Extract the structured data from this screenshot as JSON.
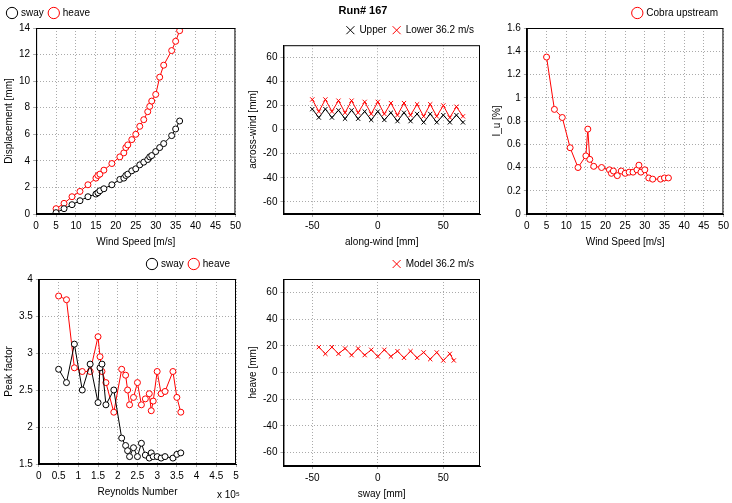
{
  "chart_data": [
    {
      "type": "line",
      "x_label": "Wind Speed [m/s]",
      "y_label": "Displacement [mm]",
      "x": [
        5,
        7,
        9,
        11,
        13,
        15,
        15.5,
        16,
        17,
        19,
        21,
        22,
        22.5,
        23,
        24,
        25,
        26,
        27,
        28,
        28.5,
        29,
        30,
        31,
        32,
        34,
        35,
        36
      ],
      "series": [
        {
          "name": "sway",
          "color": "#000000",
          "marker": "circle",
          "line_style": "solid",
          "values": [
            0.1,
            0.4,
            0.7,
            1.0,
            1.3,
            1.5,
            1.6,
            1.75,
            1.9,
            2.2,
            2.6,
            2.7,
            2.9,
            3.0,
            3.25,
            3.4,
            3.7,
            3.9,
            4.1,
            4.3,
            4.4,
            4.7,
            5.0,
            5.3,
            5.9,
            6.4,
            7.0
          ]
        },
        {
          "name": "heave",
          "color": "#ff0000",
          "marker": "circle",
          "line_style": "solid",
          "values": [
            0.4,
            0.8,
            1.3,
            1.7,
            2.2,
            2.7,
            2.9,
            3.0,
            3.3,
            3.8,
            4.3,
            4.6,
            5.0,
            5.2,
            5.6,
            6.0,
            6.6,
            7.1,
            7.7,
            8.1,
            8.5,
            9.0,
            10.3,
            11.2,
            12.3,
            13.0,
            13.8
          ]
        }
      ],
      "xlim": [
        0,
        50
      ],
      "xticks": [
        0,
        5,
        10,
        15,
        20,
        25,
        30,
        35,
        40,
        45,
        50
      ],
      "ylim": [
        0,
        14
      ],
      "yticks": [
        0,
        2,
        4,
        6,
        8,
        10,
        12,
        14
      ],
      "grid": true,
      "legend": "upper left"
    },
    {
      "type": "scatter",
      "title": "Run# 167",
      "x_label": "along-wind [mm]",
      "y_label": "across-wind [mm]",
      "x": [
        -50,
        -45,
        -40,
        -35,
        -30,
        -25,
        -20,
        -15,
        -10,
        -5,
        0,
        5,
        10,
        15,
        20,
        25,
        30,
        35,
        40,
        45,
        50,
        55,
        60,
        65
      ],
      "series": [
        {
          "name": "Upper",
          "color": "#000000",
          "marker": "x",
          "line_style": "solid",
          "values": [
            17,
            10,
            17,
            10,
            16,
            9,
            16,
            9,
            15,
            8,
            15,
            8,
            14,
            7,
            14,
            7,
            13,
            6,
            13,
            6,
            12,
            6,
            12,
            6
          ]
        },
        {
          "name": "Lower 36.2 m/s",
          "color": "#ff0000",
          "marker": "x",
          "line_style": "solid",
          "values": [
            25,
            15,
            25,
            15,
            24,
            14,
            24,
            14,
            23,
            13,
            23,
            13,
            22,
            12,
            22,
            12,
            21,
            11,
            21,
            11,
            20,
            10,
            19,
            11
          ]
        }
      ],
      "xlim": [
        -72,
        78
      ],
      "xticks": [
        -50,
        0,
        50
      ],
      "ylim": [
        -70,
        70
      ],
      "yticks": [
        -60,
        -40,
        -20,
        0,
        20,
        40,
        60
      ],
      "grid": true,
      "legend": "upper right"
    },
    {
      "type": "line",
      "x_label": "Wind Speed [m/s]",
      "y_label": "I_u [%]",
      "x": [
        5,
        7,
        9,
        11,
        13,
        15,
        15.5,
        16,
        17,
        19,
        21,
        21.5,
        22,
        23,
        24,
        25,
        26,
        27,
        28,
        28.5,
        29,
        30,
        31,
        32,
        34,
        35,
        36
      ],
      "series": [
        {
          "name": "Cobra upstream",
          "color": "#ff0000",
          "marker": "circle",
          "line_style": "solid",
          "values": [
            1.35,
            0.9,
            0.83,
            0.57,
            0.4,
            0.5,
            0.73,
            0.47,
            0.41,
            0.4,
            0.38,
            0.35,
            0.37,
            0.33,
            0.37,
            0.35,
            0.36,
            0.36,
            0.38,
            0.42,
            0.36,
            0.38,
            0.31,
            0.3,
            0.3,
            0.31,
            0.31
          ]
        }
      ],
      "xlim": [
        0,
        50
      ],
      "xticks": [
        0,
        5,
        10,
        15,
        20,
        25,
        30,
        35,
        40,
        45,
        50
      ],
      "ylim": [
        0,
        1.6
      ],
      "yticks": [
        0,
        0.2,
        0.4,
        0.6,
        0.8,
        1,
        1.2,
        1.4,
        1.6
      ],
      "grid": true,
      "legend": "upper right"
    },
    {
      "type": "line",
      "x_label": "Reynolds Number",
      "y_label": "Peak factor",
      "annotations": [
        "x 10⁵"
      ],
      "x": [
        0.5,
        0.7,
        0.9,
        1.1,
        1.3,
        1.5,
        1.55,
        1.6,
        1.7,
        1.9,
        2.1,
        2.2,
        2.25,
        2.3,
        2.4,
        2.5,
        2.6,
        2.7,
        2.8,
        2.85,
        2.9,
        3.0,
        3.1,
        3.2,
        3.4,
        3.5,
        3.6
      ],
      "series": [
        {
          "name": "sway",
          "color": "#000000",
          "marker": "circle",
          "line_style": "solid",
          "values": [
            2.78,
            2.6,
            3.12,
            2.5,
            2.85,
            2.33,
            2.8,
            2.85,
            2.3,
            2.5,
            1.85,
            1.75,
            1.68,
            1.6,
            1.72,
            1.6,
            1.78,
            1.62,
            1.58,
            1.65,
            1.6,
            1.6,
            1.58,
            1.6,
            1.58,
            1.63,
            1.65
          ]
        },
        {
          "name": "heave",
          "color": "#ff0000",
          "marker": "circle",
          "line_style": "solid",
          "values": [
            3.77,
            3.72,
            2.8,
            2.75,
            2.75,
            3.22,
            2.95,
            2.75,
            2.6,
            2.2,
            2.78,
            2.7,
            2.5,
            2.3,
            2.4,
            2.6,
            2.3,
            2.38,
            2.45,
            2.22,
            2.35,
            2.75,
            2.45,
            2.48,
            2.75,
            2.4,
            2.2
          ]
        }
      ],
      "xlim": [
        0,
        5
      ],
      "xticks": [
        0,
        0.5,
        1,
        1.5,
        2,
        2.5,
        3,
        3.5,
        4,
        4.5,
        5
      ],
      "ylim": [
        1.5,
        4
      ],
      "yticks": [
        1.5,
        2,
        2.5,
        3,
        3.5,
        4
      ],
      "grid": true,
      "legend": "upper right"
    },
    {
      "type": "scatter",
      "x_label": "sway [mm]",
      "y_label": "heave [mm]",
      "x": [
        -45,
        -40,
        -35,
        -30,
        -25,
        -20,
        -15,
        -10,
        -5,
        0,
        5,
        10,
        15,
        20,
        25,
        30,
        35,
        40,
        45,
        50,
        55,
        58
      ],
      "series": [
        {
          "name": "Model 36.2 m/s",
          "color": "#ff0000",
          "marker": "x",
          "line_style": "solid",
          "values": [
            19,
            14,
            19,
            14,
            18,
            13,
            18,
            13,
            17,
            12,
            17,
            12,
            16,
            11,
            16,
            11,
            15,
            10,
            15,
            9,
            14,
            9
          ]
        }
      ],
      "xlim": [
        -72,
        78
      ],
      "xticks": [
        -50,
        0,
        50
      ],
      "ylim": [
        -70,
        70
      ],
      "yticks": [
        -60,
        -40,
        -20,
        0,
        20,
        40,
        60
      ],
      "grid": true,
      "legend": "upper right"
    }
  ]
}
